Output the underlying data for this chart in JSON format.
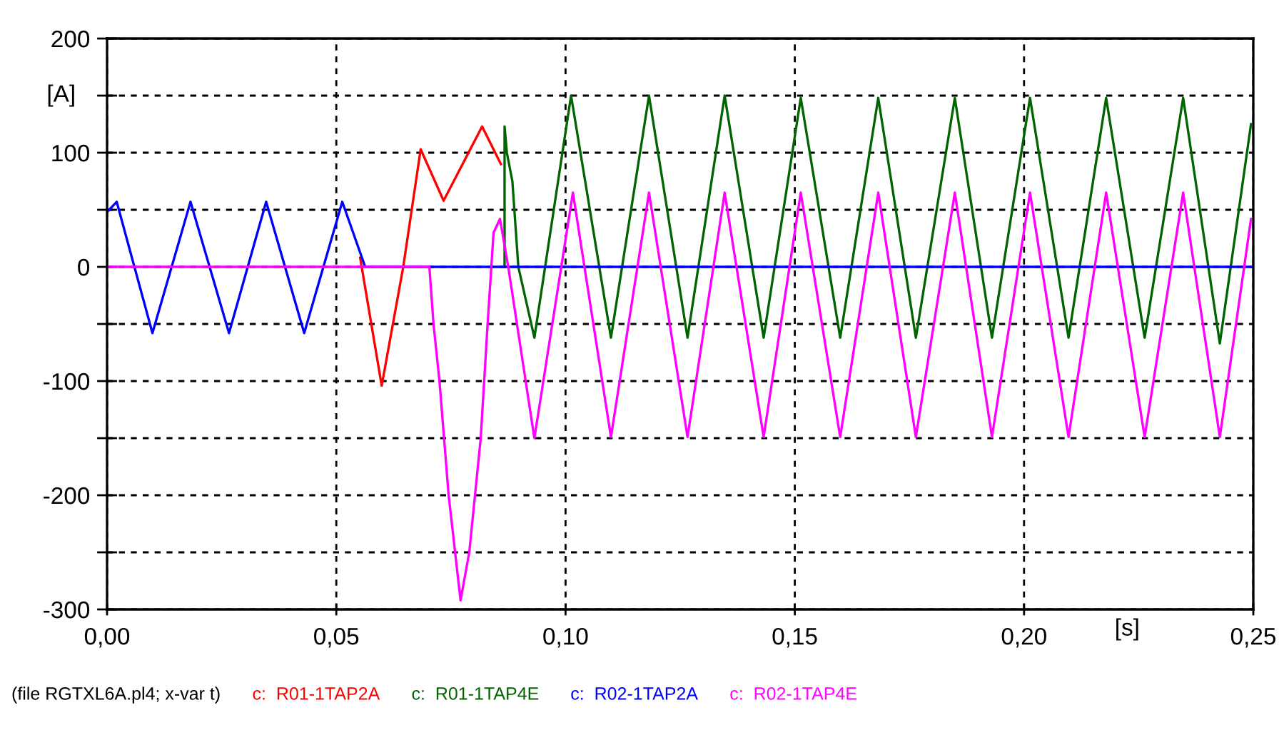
{
  "chart_data": {
    "type": "line",
    "xlabel": "[s]",
    "ylabel": "[A]",
    "xlim": [
      0,
      0.25
    ],
    "ylim": [
      -300,
      200
    ],
    "xticks": [
      {
        "value": 0,
        "label": "0,00"
      },
      {
        "value": 0.05,
        "label": "0,05"
      },
      {
        "value": 0.1,
        "label": "0,10"
      },
      {
        "value": 0.15,
        "label": "0,15"
      },
      {
        "value": 0.2,
        "label": "0,20"
      },
      {
        "value": 0.25,
        "label": "0,25"
      }
    ],
    "yticks": [
      -300,
      {
        "value": -250,
        "label": null
      },
      -200,
      {
        "value": -150,
        "label": null
      },
      -100,
      {
        "value": -50,
        "label": null
      },
      0,
      {
        "value": 50,
        "label": null
      },
      100,
      {
        "value": 150,
        "label": null
      },
      200
    ],
    "grid": true,
    "legend": "bottom",
    "marker": "none",
    "line_style": "solid",
    "annotations": [
      "(file RGTXL6A.pl4; x-var t)"
    ],
    "series": [
      {
        "name": "c:  R01-1TAP2A",
        "color": "#ff0000",
        "x": [
          0.0552,
          0.0599,
          0.0646,
          0.0684,
          0.0734,
          0.0818,
          0.0859
        ],
        "values": [
          8,
          -104,
          0,
          103,
          58,
          123,
          90
        ]
      },
      {
        "name": "c:  R01-1TAP4E",
        "color": "#006400",
        "x": [
          0.0867,
          0.0867,
          0.0872,
          0.0884,
          0.0897,
          0.0932,
          0.1012,
          0.1099,
          0.1182,
          0.1266,
          0.1347,
          0.1432,
          0.1513,
          0.1599,
          0.1682,
          0.1764,
          0.1849,
          0.193,
          0.2013,
          0.2097,
          0.2179,
          0.2263,
          0.2347,
          0.2427,
          0.2495
        ],
        "values": [
          0,
          123,
          100,
          75,
          0,
          -62,
          150,
          -62,
          150,
          -62,
          150,
          -62,
          148,
          -62,
          148,
          -62,
          148,
          -62,
          148,
          -62,
          148,
          -62,
          148,
          -67,
          125
        ]
      },
      {
        "name": "c:  R02-1TAP2A",
        "color": "#0000ff",
        "x": [
          0,
          0.0021,
          0.0099,
          0.0182,
          0.0266,
          0.0347,
          0.043,
          0.0513,
          0.0563,
          0.25
        ],
        "values": [
          48,
          57,
          -58,
          57,
          -58,
          57,
          -58,
          57,
          0,
          0
        ]
      },
      {
        "name": "c:  R02-1TAP4E",
        "color": "#ff00ff",
        "x": [
          0,
          0.0703,
          0.0712,
          0.0725,
          0.0745,
          0.0771,
          0.079,
          0.0815,
          0.083,
          0.0843,
          0.0857,
          0.0875,
          0.0932,
          0.1016,
          0.1099,
          0.1182,
          0.1266,
          0.1347,
          0.1432,
          0.1513,
          0.1599,
          0.1682,
          0.1764,
          0.1849,
          0.193,
          0.2013,
          0.2097,
          0.2179,
          0.2263,
          0.2347,
          0.2427,
          0.2495
        ],
        "values": [
          0,
          0,
          -50,
          -100,
          -200,
          -292,
          -250,
          -150,
          -50,
          30,
          42,
          0,
          -150,
          65,
          -149,
          65,
          -149,
          65,
          -149,
          65,
          -149,
          65,
          -149,
          65,
          -149,
          65,
          -149,
          65,
          -149,
          65,
          -149,
          42
        ]
      }
    ]
  }
}
